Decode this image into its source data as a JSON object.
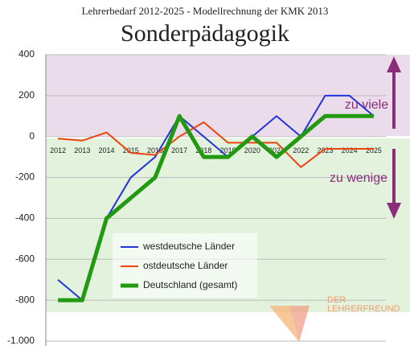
{
  "chart_data": {
    "type": "line",
    "title": "Lehrerbedarf 2012-2025 - Modellrechnung der KMK 2013",
    "subtitle": "Sonderpädagogik",
    "categories": [
      "2012",
      "2013",
      "2014",
      "2015",
      "2016",
      "2017",
      "2018",
      "2019",
      "2020",
      "2021",
      "2022",
      "2023",
      "2024",
      "2025"
    ],
    "series": [
      {
        "name": "westdeutsche Länder",
        "color": "#2233dd",
        "width": 2,
        "values": [
          -700,
          -800,
          -400,
          -200,
          -100,
          100,
          0,
          -100,
          0,
          100,
          0,
          200,
          200,
          100
        ]
      },
      {
        "name": "ostdeutsche Länder",
        "color": "#ee4411",
        "width": 2,
        "values": [
          -10,
          -20,
          20,
          -80,
          -90,
          0,
          70,
          -30,
          -30,
          -30,
          -150,
          -60,
          -60,
          -60
        ]
      },
      {
        "name": "Deutschland (gesamt)",
        "color": "#229911",
        "width": 5,
        "values": [
          -800,
          -800,
          -400,
          -300,
          -200,
          100,
          -100,
          -100,
          0,
          -100,
          0,
          100,
          100,
          100
        ]
      }
    ],
    "ylim": [
      -1000,
      400
    ],
    "yticks": [
      400,
      200,
      0,
      -200,
      -400,
      -600,
      -800,
      {
        "value": -1000,
        "label": "-1.000"
      }
    ],
    "grid": true,
    "annotations": [
      "zu viele",
      "zu wenige",
      "DER",
      "LEHRERFREUND"
    ]
  }
}
